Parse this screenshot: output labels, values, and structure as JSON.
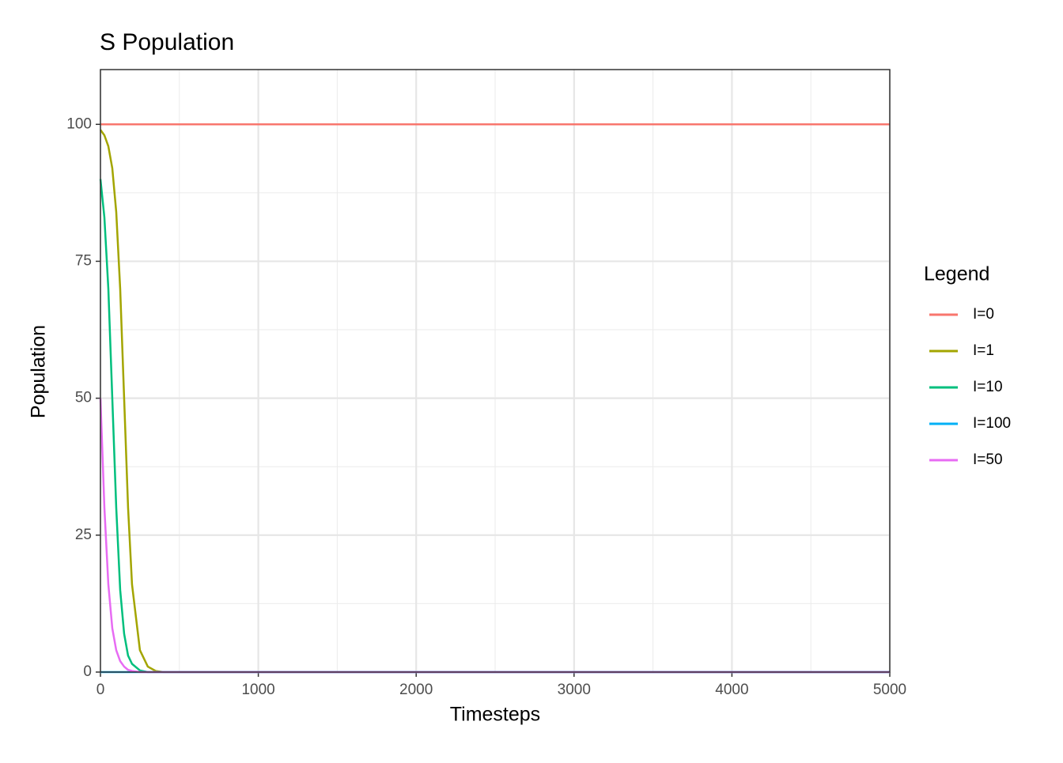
{
  "chart_data": {
    "type": "line",
    "title": "S Population",
    "x_label": "Timesteps",
    "y_label": "Population",
    "legend_title": "Legend",
    "x": [
      0,
      25,
      50,
      75,
      100,
      125,
      150,
      175,
      200,
      250,
      300,
      350,
      400,
      500,
      1000,
      2000,
      3000,
      4000,
      5000
    ],
    "series": [
      {
        "name": "I=0",
        "color": "#F8766D",
        "values": [
          100,
          100,
          100,
          100,
          100,
          100,
          100,
          100,
          100,
          100,
          100,
          100,
          100,
          100,
          100,
          100,
          100,
          100,
          100
        ]
      },
      {
        "name": "I=1",
        "color": "#A3A500",
        "values": [
          99,
          98,
          96,
          92,
          84,
          70,
          50,
          30,
          16,
          4,
          1,
          0.2,
          0,
          0,
          0,
          0,
          0,
          0,
          0
        ]
      },
      {
        "name": "I=10",
        "color": "#00BF7D",
        "values": [
          90,
          83,
          70,
          50,
          30,
          15,
          7,
          3,
          1.5,
          0.3,
          0,
          0,
          0,
          0,
          0,
          0,
          0,
          0,
          0
        ]
      },
      {
        "name": "I=100",
        "color": "#00B0F6",
        "values": [
          0,
          0,
          0,
          0,
          0,
          0,
          0,
          0,
          0,
          0,
          0,
          0,
          0,
          0,
          0,
          0,
          0,
          0,
          0
        ]
      },
      {
        "name": "I=50",
        "color": "#E76BF3",
        "values": [
          50,
          30,
          16,
          8,
          4,
          2,
          1,
          0.4,
          0.2,
          0,
          0,
          0,
          0,
          0,
          0,
          0,
          0,
          0,
          0
        ]
      }
    ],
    "xlim": [
      0,
      5000
    ],
    "xticks": [
      0,
      1000,
      2000,
      3000,
      4000,
      5000
    ],
    "ylim": [
      0,
      110
    ],
    "yticks": [
      0,
      25,
      50,
      75,
      100
    ],
    "x_minor_grid": [
      500,
      1500,
      2500,
      3500,
      4500
    ],
    "y_minor_grid": [
      12.5,
      37.5,
      62.5,
      87.5
    ],
    "grid": true,
    "legend_position": "right"
  }
}
